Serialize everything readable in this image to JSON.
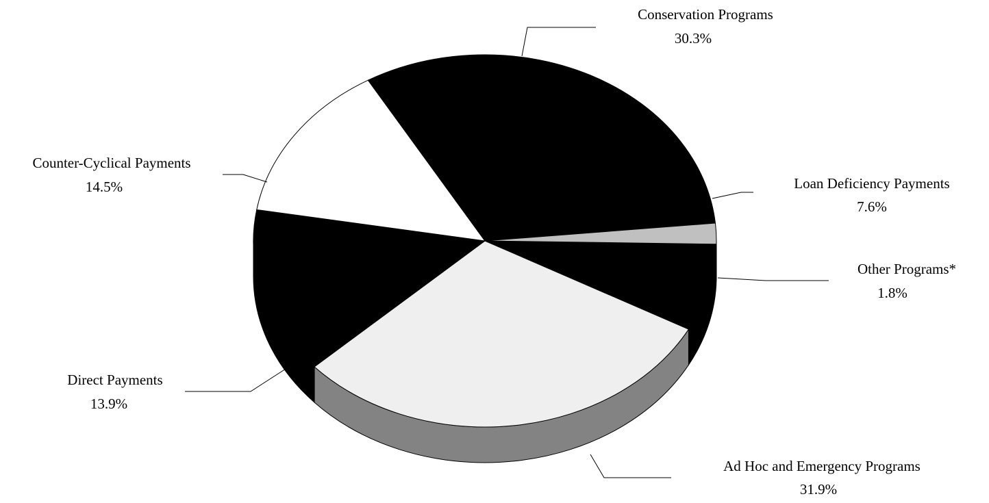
{
  "chart_data": {
    "type": "pie",
    "title": "",
    "three_d": true,
    "slices": [
      {
        "label": "Loan Deficiency Payments",
        "value": 7.6,
        "value_label": "7.6%",
        "color": "#000000"
      },
      {
        "label": "Conservation Programs",
        "value": 30.3,
        "value_label": "30.3%",
        "color": "#efefef"
      },
      {
        "label": "Counter-Cyclical Payments",
        "value": 14.5,
        "value_label": "14.5%",
        "color": "#000000"
      },
      {
        "label": "Direct Payments",
        "value": 13.9,
        "value_label": "13.9%",
        "color": "#ffffff"
      },
      {
        "label": "Ad Hoc and Emergency Programs",
        "value": 31.9,
        "value_label": "31.9%",
        "color": "#000000"
      },
      {
        "label": "Other Programs*",
        "value": 1.8,
        "value_label": "1.8%",
        "color": "#c0c0c0"
      }
    ]
  }
}
